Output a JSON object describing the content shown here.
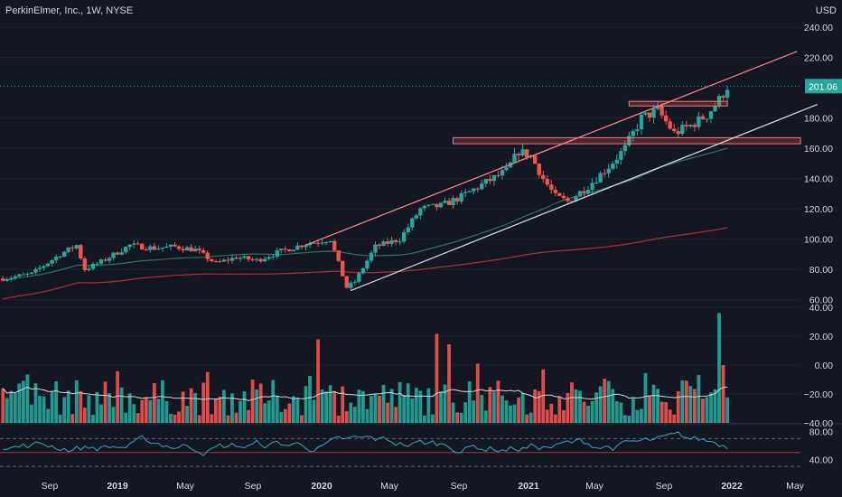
{
  "header": {
    "symbol": "PerkinElmer, Inc., 1W, NYSE",
    "currency": "USD"
  },
  "colors": {
    "up": "#26a69a",
    "down": "#ef5350",
    "bg": "#131722",
    "grid": "#1e222d",
    "ma_fast": "#2f6f5f",
    "ma_slow": "#b02a35",
    "channel": "#f77c80",
    "support": "#d1d4dc",
    "rsi": "#2ba6bf"
  },
  "chart_data": [
    {
      "type": "candlestick",
      "title": "PerkinElmer, Inc., 1W, NYSE",
      "ylabel": "USD",
      "ylim": [
        55,
        258
      ],
      "price_ticks": [
        240,
        220,
        180,
        160,
        140,
        120,
        100,
        80,
        60
      ],
      "last_price": 201.06,
      "last_price_label": "201.06",
      "time_axis": [
        "Sep",
        "2019",
        "May",
        "Sep",
        "2020",
        "May",
        "Sep",
        "2021",
        "May",
        "Sep",
        "2022",
        "May"
      ],
      "time_axis_bold": [
        "2019",
        "2020",
        "2021",
        "2022"
      ],
      "x_range": [
        "2018-08",
        "2022-05"
      ],
      "close_path": [
        [
          "2018-08-06",
          74
        ],
        [
          "2018-09-24",
          77
        ],
        [
          "2018-11-12",
          90
        ],
        [
          "2018-12-10",
          96
        ],
        [
          "2018-12-24",
          80
        ],
        [
          "2019-01-21",
          85
        ],
        [
          "2019-03-11",
          96
        ],
        [
          "2019-04-22",
          94
        ],
        [
          "2019-05-27",
          95
        ],
        [
          "2019-07-01",
          93
        ],
        [
          "2019-08-05",
          84
        ],
        [
          "2019-09-09",
          88
        ],
        [
          "2019-10-14",
          86
        ],
        [
          "2019-11-25",
          92
        ],
        [
          "2020-01-06",
          97
        ],
        [
          "2020-02-17",
          100
        ],
        [
          "2020-03-16",
          68
        ],
        [
          "2020-03-30",
          72
        ],
        [
          "2020-05-04",
          95
        ],
        [
          "2020-06-15",
          100
        ],
        [
          "2020-07-20",
          120
        ],
        [
          "2020-08-24",
          122
        ],
        [
          "2020-09-28",
          128
        ],
        [
          "2020-11-02",
          136
        ],
        [
          "2020-12-14",
          145
        ],
        [
          "2021-01-04",
          158
        ],
        [
          "2021-01-25",
          155
        ],
        [
          "2021-02-15",
          140
        ],
        [
          "2021-03-08",
          128
        ],
        [
          "2021-03-29",
          125
        ],
        [
          "2021-05-03",
          135
        ],
        [
          "2021-06-07",
          148
        ],
        [
          "2021-07-05",
          160
        ],
        [
          "2021-08-02",
          180
        ],
        [
          "2021-08-30",
          185
        ],
        [
          "2021-09-27",
          170
        ],
        [
          "2021-10-25",
          175
        ],
        [
          "2021-11-22",
          182
        ],
        [
          "2021-12-13",
          192
        ],
        [
          "2021-12-27",
          201
        ]
      ],
      "trendlines": [
        {
          "name": "channel-top",
          "from": [
            "2020-01-06",
            96
          ],
          "to": [
            "2022-04-25",
            224
          ]
        },
        {
          "name": "channel-bottom",
          "from": [
            "2020-03-23",
            66
          ],
          "to": [
            "2022-05-30",
            189
          ]
        }
      ],
      "zones": [
        {
          "name": "resistance-zone-upper",
          "from": "2021-07-12",
          "to": "2021-12-27",
          "y": [
            191,
            188
          ]
        },
        {
          "name": "support-zone-lower",
          "from": "2020-09-14",
          "to": "2022-05-01",
          "y": [
            167,
            163
          ]
        }
      ]
    },
    {
      "type": "bar",
      "title": "",
      "ylim": [
        -40,
        40
      ],
      "ticks": [
        40,
        20,
        0,
        -20,
        -40
      ],
      "tick_labels": [
        "40.00",
        "20.00",
        "0.00",
        "−20.00",
        "−40.00"
      ]
    },
    {
      "type": "line",
      "title": "",
      "ylim": [
        25,
        90
      ],
      "ticks": [
        80,
        40
      ],
      "tick_labels": [
        "80.00",
        "40.00"
      ],
      "levels": [
        70,
        50,
        30
      ]
    }
  ]
}
